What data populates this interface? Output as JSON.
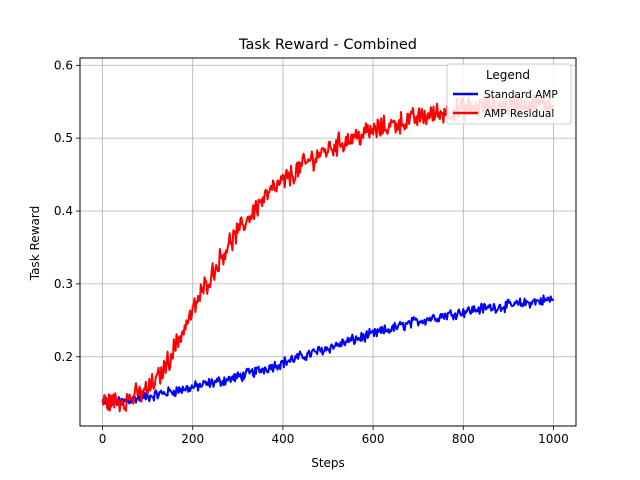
{
  "chart_data": {
    "type": "line",
    "title": "Task Reward - Combined",
    "xlabel": "Steps",
    "ylabel": "Task Reward",
    "xlim": [
      -50,
      1050
    ],
    "ylim": [
      0.105,
      0.61
    ],
    "xticks": [
      0,
      200,
      400,
      600,
      800,
      1000
    ],
    "yticks": [
      0.2,
      0.3,
      0.4,
      0.5,
      0.6
    ],
    "xtick_labels": [
      "0",
      "200",
      "400",
      "600",
      "800",
      "1000"
    ],
    "ytick_labels": [
      "0.2",
      "0.3",
      "0.4",
      "0.5",
      "0.6"
    ],
    "grid": true,
    "legend": {
      "title": "Legend",
      "placement": "top-right"
    },
    "series": [
      {
        "name": "Standard AMP",
        "color": "#0000ff",
        "x": [
          0,
          50,
          100,
          150,
          200,
          250,
          300,
          350,
          400,
          450,
          500,
          550,
          600,
          650,
          700,
          750,
          800,
          850,
          900,
          950,
          1000
        ],
        "y": [
          0.137,
          0.14,
          0.145,
          0.152,
          0.158,
          0.165,
          0.172,
          0.182,
          0.192,
          0.202,
          0.212,
          0.222,
          0.231,
          0.24,
          0.249,
          0.256,
          0.262,
          0.267,
          0.27,
          0.275,
          0.279
        ],
        "noise": 0.006
      },
      {
        "name": "AMP Residual",
        "color": "#ff0000",
        "x": [
          0,
          50,
          100,
          125,
          150,
          175,
          200,
          225,
          250,
          275,
          300,
          325,
          350,
          375,
          400,
          425,
          450,
          475,
          500,
          550,
          600,
          650,
          700,
          750,
          800,
          850,
          900,
          950,
          1000
        ],
        "y": [
          0.138,
          0.14,
          0.155,
          0.172,
          0.2,
          0.232,
          0.262,
          0.295,
          0.322,
          0.35,
          0.37,
          0.392,
          0.412,
          0.428,
          0.44,
          0.452,
          0.465,
          0.476,
          0.485,
          0.5,
          0.51,
          0.52,
          0.528,
          0.535,
          0.54,
          0.543,
          0.545,
          0.546,
          0.547
        ],
        "noise": 0.012
      }
    ]
  }
}
